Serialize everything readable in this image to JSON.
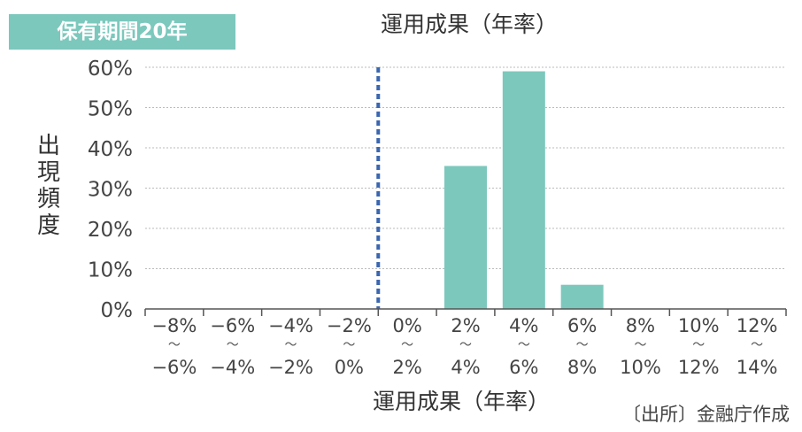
{
  "badge": "保有期間20年",
  "source": "〔出所〕金融庁作成",
  "colors": {
    "bar": "#7cc8bd",
    "badge": "#7cc8bd",
    "reference_line": "#3a66b0",
    "grid": "#bbbbbb"
  },
  "chart_data": {
    "type": "bar",
    "title": "運用成果（年率）",
    "xlabel": "運用成果（年率）",
    "ylabel": "出現頻度",
    "categories": [
      {
        "top": "−8%",
        "bottom": "−6%"
      },
      {
        "top": "−6%",
        "bottom": "−4%"
      },
      {
        "top": "−4%",
        "bottom": "−2%"
      },
      {
        "top": "−2%",
        "bottom": "0%"
      },
      {
        "top": "0%",
        "bottom": "2%"
      },
      {
        "top": "2%",
        "bottom": "4%"
      },
      {
        "top": "4%",
        "bottom": "6%"
      },
      {
        "top": "6%",
        "bottom": "8%"
      },
      {
        "top": "8%",
        "bottom": "10%"
      },
      {
        "top": "10%",
        "bottom": "12%"
      },
      {
        "top": "12%",
        "bottom": "14%"
      }
    ],
    "range_mark": "〜",
    "values": [
      0,
      0,
      0,
      0,
      0,
      35.5,
      59,
      6,
      0,
      0,
      0
    ],
    "ylim": [
      0,
      60
    ],
    "yticks": [
      0,
      10,
      20,
      30,
      40,
      50,
      60
    ],
    "ytick_labels": [
      "0%",
      "10%",
      "20%",
      "30%",
      "40%",
      "50%",
      "60%"
    ],
    "reference_line_at_category_boundary": 4,
    "grid": true
  }
}
